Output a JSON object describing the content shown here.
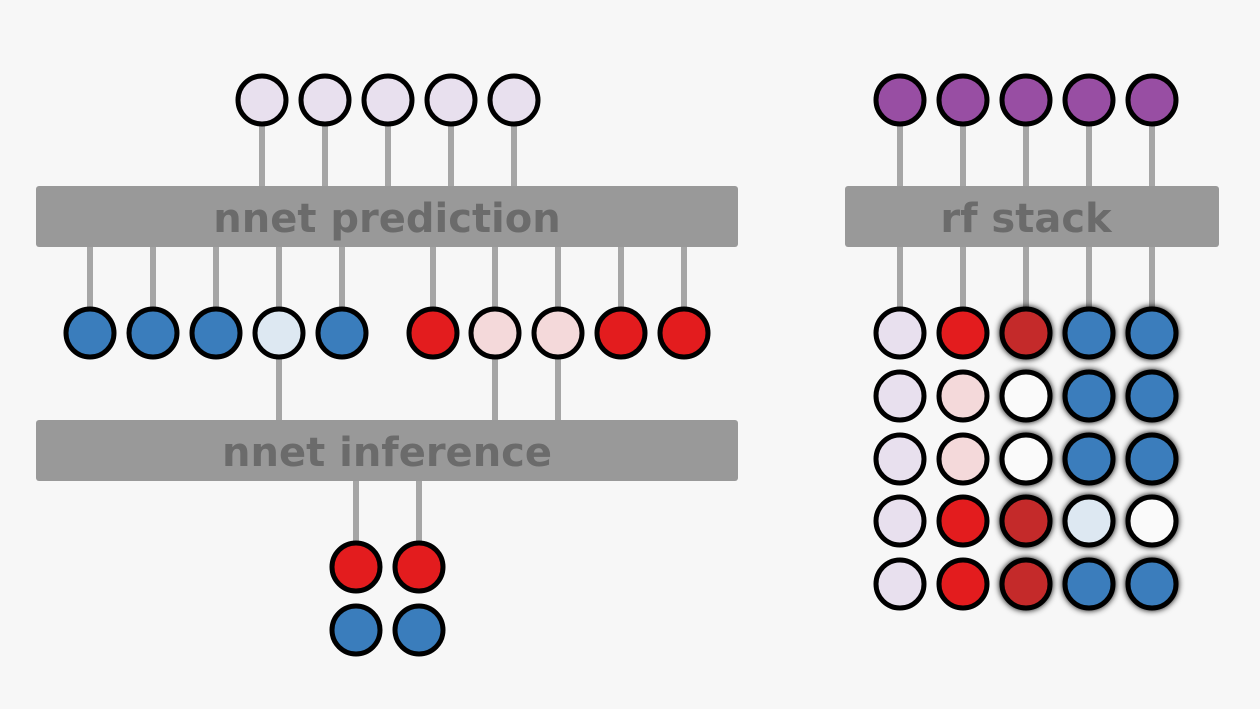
{
  "boxes": {
    "nnet_prediction": "nnet prediction",
    "nnet_inference": "nnet inference",
    "rf_stack": "rf stack"
  },
  "colors": {
    "background": "#f7f7f7",
    "box": "#999999",
    "box_text": "#6b6b6b",
    "connector": "#a6a6a6",
    "outline": "#000000",
    "blue": "#3a7dbc",
    "light_blue": "#dde8f2",
    "red": "#e31c1e",
    "dark_red": "#c42b2b",
    "light_red": "#f4d9da",
    "lavender": "#e8e0ee",
    "purple": "#984ea3",
    "white": "#fafafa"
  },
  "nodes": {
    "left_top": [
      "lavender",
      "lavender",
      "lavender",
      "lavender",
      "lavender"
    ],
    "left_middle": [
      "blue",
      "blue",
      "blue",
      "light_blue",
      "blue",
      "red",
      "light_red",
      "light_red",
      "red",
      "red"
    ],
    "left_bottom": [
      "red",
      "red",
      "blue",
      "blue"
    ],
    "right_top": [
      "purple",
      "purple",
      "purple",
      "purple",
      "purple"
    ],
    "right_grid": [
      [
        "lavender",
        "red",
        "dark_red",
        "blue",
        "blue"
      ],
      [
        "lavender",
        "light_red",
        "white",
        "blue",
        "blue"
      ],
      [
        "lavender",
        "light_red",
        "white",
        "blue",
        "blue"
      ],
      [
        "lavender",
        "red",
        "dark_red",
        "light_blue",
        "white"
      ],
      [
        "lavender",
        "red",
        "dark_red",
        "blue",
        "blue"
      ]
    ],
    "right_grid_blurred_columns": [
      2,
      3,
      4
    ]
  }
}
